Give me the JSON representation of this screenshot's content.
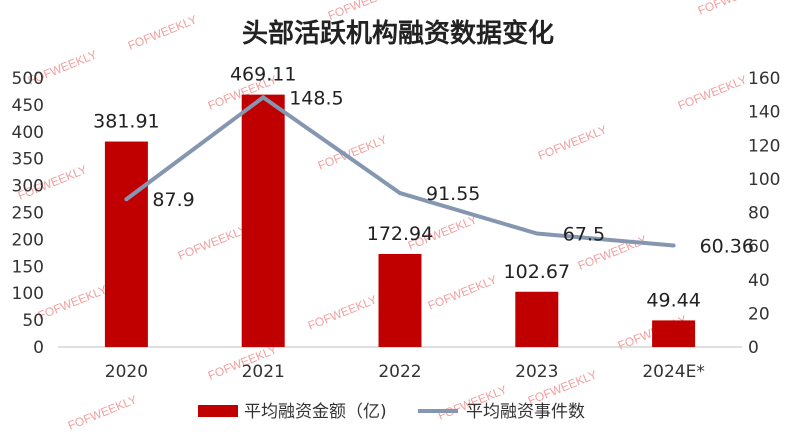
{
  "chart_data": {
    "type": "bar",
    "title": "头部活跃机构融资数据变化",
    "categories": [
      "2020",
      "2021",
      "2022",
      "2023",
      "2024E*"
    ],
    "series": [
      {
        "name": "平均融资金额（亿)",
        "kind": "bar",
        "axis": "left",
        "color": "#c00000",
        "values": [
          381.91,
          469.11,
          172.94,
          102.67,
          49.44
        ],
        "labels": [
          "381.91",
          "469.11",
          "172.94",
          "102.67",
          "49.44"
        ]
      },
      {
        "name": "平均融资事件数",
        "kind": "line",
        "axis": "right",
        "color": "#8496b0",
        "values": [
          87.9,
          148.5,
          91.55,
          67.5,
          60.36
        ],
        "labels": [
          "87.9",
          "148.5",
          "91.55",
          "67.5",
          "60.36"
        ]
      }
    ],
    "y_left": {
      "min": 0,
      "max": 500,
      "ticks": [
        "0",
        "50",
        "100",
        "150",
        "200",
        "250",
        "300",
        "350",
        "400",
        "450",
        "500"
      ]
    },
    "y_right": {
      "min": 0,
      "max": 160,
      "ticks": [
        "0",
        "20",
        "40",
        "60",
        "80",
        "100",
        "120",
        "140",
        "160"
      ]
    },
    "grid": false,
    "legend": "bottom"
  },
  "watermark": {
    "text": "FOFWEEKLY",
    "color": "#f2a0a0"
  }
}
